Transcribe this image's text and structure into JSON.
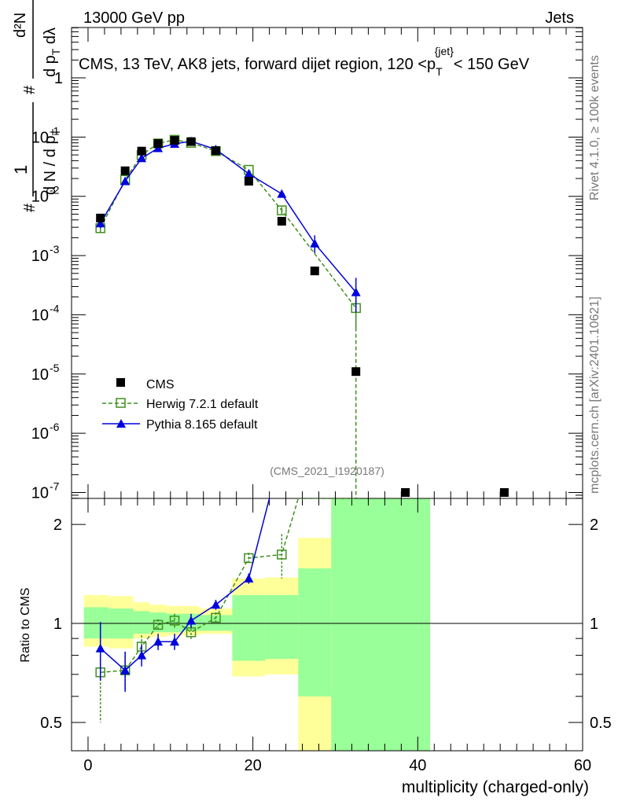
{
  "header": {
    "energy": "13000 GeV pp",
    "category": "Jets",
    "title_main": "CMS, 13 TeV, AK8 jets, forward dijet region, 120 <p",
    "title_sub": "T",
    "title_sup": "{jet}",
    "title_tail": "< 150 GeV",
    "analysis_id": "(CMS_2021_I1920187)"
  },
  "sidebar": {
    "rivet": "Rivet 4.1.0, ≥ 100k events",
    "mcplots": "mcplots.cern.ch [arXiv:2401.10621]"
  },
  "axes": {
    "x_label": "multiplicity (charged-only)",
    "ratio_label": "Ratio to CMS",
    "x_ticks": [
      "0",
      "20",
      "40",
      "60"
    ],
    "x_tick_values": [
      0,
      20,
      40,
      60
    ],
    "ratio_ticks": [
      "0.5",
      "1",
      "2"
    ],
    "ratio_tick_values": [
      0.5,
      1,
      2
    ],
    "y_tick_values": [
      -7,
      -6,
      -5,
      -4,
      -3,
      -2,
      -1,
      0
    ],
    "y_tick_mantissa": [
      "10",
      "10",
      "10",
      "10",
      "10",
      "10",
      "10",
      "1"
    ],
    "y_tick_exponent": [
      "-7",
      "-6",
      "-5",
      "-4",
      "-3",
      "-2",
      "-1",
      ""
    ]
  },
  "ylabel": {
    "hash1": "#",
    "num1": "1",
    "den1": "d N / d p",
    "den1_sub": "T",
    "hash2": "#",
    "num2": "d²N",
    "den2": "d p",
    "den2_sub": "T",
    "den2_tail": " dλ"
  },
  "legend": {
    "cms": "CMS",
    "herwig": "Herwig 7.2.1 default",
    "pythia": "Pythia 8.165 default"
  },
  "colors": {
    "cms": "#000000",
    "herwig": "#3f8f1f",
    "pythia": "#0000dd",
    "band_yellow": "#ffff99",
    "band_green": "#99ff99"
  },
  "chart_data": {
    "type": "scatter",
    "xlabel": "multiplicity (charged-only)",
    "xlim": [
      -2,
      60
    ],
    "ylim_log10": [
      -7.1,
      0.85
    ],
    "ratio_ylim": [
      0.41,
      2.4
    ],
    "cms": {
      "x": [
        1.5,
        4.5,
        6.5,
        8.5,
        10.5,
        12.5,
        15.5,
        19.5,
        23.5,
        27.5,
        32.5,
        38.5,
        50.5
      ],
      "y": [
        0.0043,
        0.027,
        0.058,
        0.078,
        0.088,
        0.084,
        0.059,
        0.018,
        0.0038,
        0.00055,
        1.1e-05,
        1e-07,
        1e-07
      ]
    },
    "herwig": {
      "x": [
        1.5,
        4.5,
        6.5,
        8.5,
        10.5,
        12.5,
        15.5,
        19.5,
        23.5,
        32.5,
        32.5
      ],
      "y": [
        0.0029,
        0.019,
        0.05,
        0.078,
        0.09,
        0.08,
        0.058,
        0.028,
        0.0058,
        0.00013,
        8e-08
      ],
      "err_low": [
        0.0005,
        0,
        0,
        0,
        0,
        0,
        0,
        0,
        0.0008,
        7e-05,
        0
      ],
      "err_high": [
        0.0005,
        0,
        0,
        0,
        0,
        0,
        0,
        0,
        0.0008,
        0.00012,
        0
      ]
    },
    "pythia": {
      "x": [
        1.5,
        4.5,
        6.5,
        8.5,
        10.5,
        12.5,
        15.5,
        19.5,
        23.5,
        27.5,
        32.5
      ],
      "y": [
        0.0035,
        0.018,
        0.044,
        0.065,
        0.077,
        0.085,
        0.062,
        0.024,
        0.011,
        0.0016,
        0.00024
      ],
      "err_low": [
        0.0006,
        0,
        0,
        0,
        0,
        0,
        0,
        0,
        0,
        0.0005,
        0.00013
      ],
      "err_high": [
        0.0006,
        0,
        0,
        0,
        0,
        0,
        0,
        0,
        0,
        0.0006,
        0.00018
      ]
    },
    "ratio_herwig": {
      "x": [
        1.5,
        4.5,
        6.5,
        8.5,
        10.5,
        12.5,
        15.5,
        19.5,
        23.5,
        25.5,
        32.5
      ],
      "y": [
        0.71,
        0.72,
        0.85,
        0.99,
        1.02,
        0.94,
        1.04,
        1.58,
        1.62,
        2.4,
        2.4
      ],
      "err": [
        0.21,
        0.1,
        0.07,
        0.04,
        0.05,
        0.05,
        0.04,
        0.06,
        0.25,
        0,
        0
      ]
    },
    "ratio_pythia": {
      "x": [
        1.5,
        4.5,
        6.5,
        8.5,
        10.5,
        12.5,
        15.5,
        19.5,
        22.0
      ],
      "y": [
        0.84,
        0.72,
        0.8,
        0.88,
        0.88,
        1.02,
        1.14,
        1.37,
        2.4
      ],
      "err": [
        0.17,
        0.1,
        0.06,
        0.05,
        0.05,
        0.05,
        0.04,
        0.05,
        0
      ]
    },
    "bands": [
      {
        "x0": -0.5,
        "x1": 2.5,
        "y0": 0.85,
        "y1": 1.22,
        "g0": 0.9,
        "g1": 1.12
      },
      {
        "x0": 2.5,
        "x1": 5.5,
        "y0": 0.84,
        "y1": 1.21,
        "g0": 0.9,
        "g1": 1.11
      },
      {
        "x0": 5.5,
        "x1": 7.5,
        "y0": 0.9,
        "y1": 1.16,
        "g0": 0.93,
        "g1": 1.09
      },
      {
        "x0": 7.5,
        "x1": 9.5,
        "y0": 0.91,
        "y1": 1.14,
        "g0": 0.94,
        "g1": 1.08
      },
      {
        "x0": 9.5,
        "x1": 11.5,
        "y0": 0.92,
        "y1": 1.13,
        "g0": 0.94,
        "g1": 1.07
      },
      {
        "x0": 11.5,
        "x1": 13.5,
        "y0": 0.92,
        "y1": 1.13,
        "g0": 0.95,
        "g1": 1.07
      },
      {
        "x0": 13.5,
        "x1": 17.5,
        "y0": 0.93,
        "y1": 1.11,
        "g0": 0.95,
        "g1": 1.06
      },
      {
        "x0": 17.5,
        "x1": 21.5,
        "y0": 0.69,
        "y1": 1.37,
        "g0": 0.77,
        "g1": 1.22
      },
      {
        "x0": 21.5,
        "x1": 25.5,
        "y0": 0.7,
        "y1": 1.38,
        "g0": 0.78,
        "g1": 1.22
      },
      {
        "x0": 25.5,
        "x1": 29.5,
        "y0": 0.41,
        "y1": 1.82,
        "g0": 0.6,
        "g1": 1.47
      },
      {
        "x0": 29.5,
        "x1": 41.5,
        "y0": 0.41,
        "y1": 2.4,
        "g0": 0.41,
        "g1": 2.4
      }
    ]
  }
}
